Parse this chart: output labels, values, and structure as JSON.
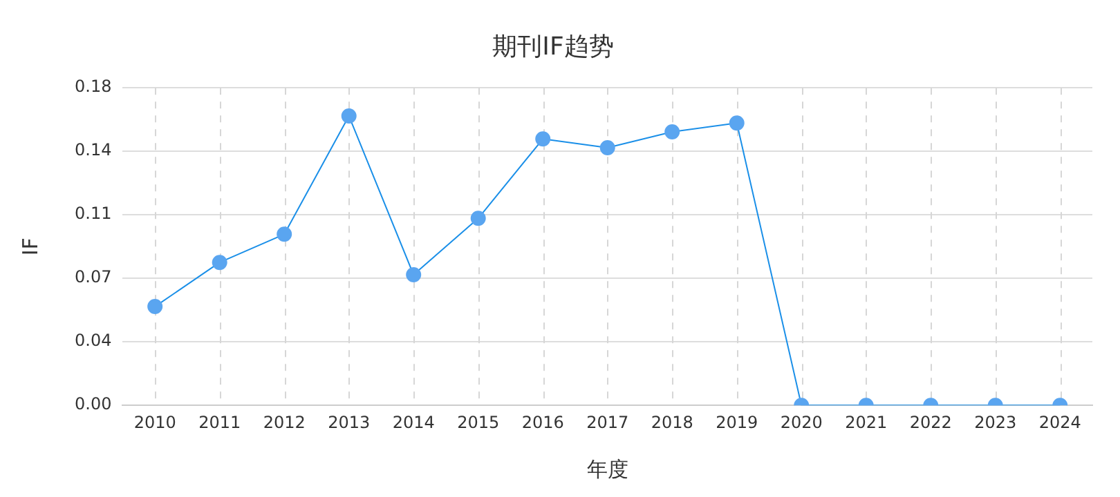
{
  "chart_data": {
    "type": "line",
    "title": "期刊IF趋势",
    "xlabel": "年度",
    "ylabel": "IF",
    "categories": [
      "2010",
      "2011",
      "2012",
      "2013",
      "2014",
      "2015",
      "2016",
      "2017",
      "2018",
      "2019",
      "2020",
      "2021",
      "2022",
      "2023",
      "2024"
    ],
    "series": [
      {
        "color": "#1a8fe8",
        "values": [
          0.056,
          0.081,
          0.097,
          0.164,
          0.074,
          0.106,
          0.151,
          0.146,
          0.155,
          0.16,
          0,
          0,
          0,
          0,
          0
        ]
      }
    ],
    "ylim": [
      0,
      0.18
    ],
    "yticks": [
      {
        "value": 0,
        "label": "0.00"
      },
      {
        "value": 0.036,
        "label": "0.04"
      },
      {
        "value": 0.072,
        "label": "0.07"
      },
      {
        "value": 0.108,
        "label": "0.11"
      },
      {
        "value": 0.144,
        "label": "0.14"
      },
      {
        "value": 0.18,
        "label": "0.18"
      }
    ],
    "grid": true,
    "legend": false,
    "marker": "circle",
    "line_style": "solid"
  }
}
